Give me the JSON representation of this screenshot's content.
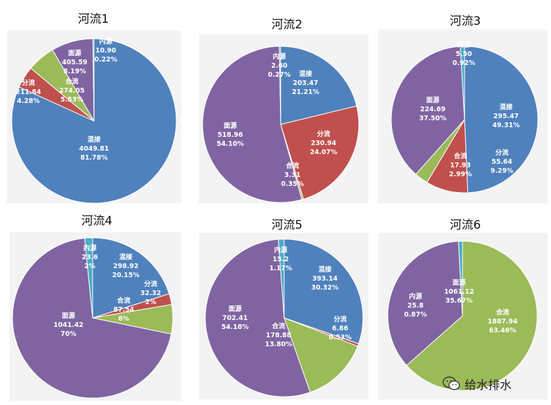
{
  "colors": {
    "混接": "#4f81bd",
    "分流": "#c0504d",
    "合流": "#9bbb59",
    "面源": "#8064a2",
    "内源": "#4bacc6"
  },
  "watermark": {
    "text": "给水排水",
    "icon": "wechat-icon"
  },
  "chart_data": [
    {
      "type": "pie",
      "title": "河流1",
      "slices": [
        {
          "name": "混接",
          "value": 4049.81,
          "percent": "81.78%"
        },
        {
          "name": "分流",
          "value": 211.84,
          "percent": "4.28%"
        },
        {
          "name": "合流",
          "value": 274.05,
          "percent": "5.53%"
        },
        {
          "name": "面源",
          "value": 405.59,
          "percent": "8.19%"
        },
        {
          "name": "内源",
          "value": 10.9,
          "percent": "0.22%"
        }
      ],
      "labels": [
        {
          "name": "混接",
          "value": "4049.81",
          "percent": "81.78%"
        },
        {
          "name": "分流",
          "value": "211.84",
          "percent": "4.28%"
        },
        {
          "name": "合流",
          "value": "274.05",
          "percent": "5.53%"
        },
        {
          "name": "面源",
          "value": "405.59",
          "percent": "8.19%"
        },
        {
          "name": "内源",
          "value": "10.90",
          "percent": "0.22%"
        }
      ]
    },
    {
      "type": "pie",
      "title": "河流2",
      "slices": [
        {
          "name": "混接",
          "value": 203.47,
          "percent": "21.21%"
        },
        {
          "name": "分流",
          "value": 230.94,
          "percent": "24.07%"
        },
        {
          "name": "合流",
          "value": 3.31,
          "percent": "0.35%"
        },
        {
          "name": "面源",
          "value": 518.96,
          "percent": "54.10%"
        },
        {
          "name": "内源",
          "value": 2.6,
          "percent": "0.27%"
        }
      ],
      "labels": [
        {
          "name": "混接",
          "value": "203.47",
          "percent": "21.21%"
        },
        {
          "name": "分流",
          "value": "230.94",
          "percent": "24.07%"
        },
        {
          "name": "合流",
          "value": "3.31",
          "percent": "0.35%"
        },
        {
          "name": "面源",
          "value": "518.96",
          "percent": "54.10%"
        },
        {
          "name": "内源",
          "value": "2.60",
          "percent": "0.27%"
        }
      ]
    },
    {
      "type": "pie",
      "title": "河流3",
      "slices": [
        {
          "name": "混接",
          "value": 295.47,
          "percent": "49.31%"
        },
        {
          "name": "分流",
          "value": 55.64,
          "percent": "9.29%"
        },
        {
          "name": "合流",
          "value": 17.93,
          "percent": "2.99%"
        },
        {
          "name": "面源",
          "value": 224.69,
          "percent": "37.50%"
        },
        {
          "name": "内源",
          "value": 5.5,
          "percent": "0.92%"
        }
      ],
      "labels": [
        {
          "name": "混接",
          "value": "295.47",
          "percent": "49.31%"
        },
        {
          "name": "分流",
          "value": "55.64",
          "percent": "9.29%"
        },
        {
          "name": "合流",
          "value": "17.93",
          "percent": "2.99%"
        },
        {
          "name": "面源",
          "value": "224.69",
          "percent": "37.50%"
        },
        {
          "name": "内源",
          "value": "5.50",
          "percent": "0.92%"
        }
      ]
    },
    {
      "type": "pie",
      "title": "河流4",
      "slices": [
        {
          "name": "混接",
          "value": 298.92,
          "percent": "20.15%"
        },
        {
          "name": "分流",
          "value": 32.32,
          "percent": "2%"
        },
        {
          "name": "合流",
          "value": 87.54,
          "percent": "6%"
        },
        {
          "name": "面源",
          "value": 1041.42,
          "percent": "70%"
        },
        {
          "name": "内源",
          "value": 23.6,
          "percent": "2%"
        }
      ],
      "labels": [
        {
          "name": "混接",
          "value": "298.92",
          "percent": "20.15%"
        },
        {
          "name": "分流",
          "value": "32.32",
          "percent": "2%"
        },
        {
          "name": "合流",
          "value": "87.54",
          "percent": "6%"
        },
        {
          "name": "面源",
          "value": "1041.42",
          "percent": "70%"
        },
        {
          "name": "内源",
          "value": "23.6",
          "percent": "2%"
        }
      ]
    },
    {
      "type": "pie",
      "title": "河流5",
      "slices": [
        {
          "name": "混接",
          "value": 393.14,
          "percent": "30.32%"
        },
        {
          "name": "分流",
          "value": 6.86,
          "percent": "0.53%"
        },
        {
          "name": "合流",
          "value": 178.88,
          "percent": "13.80%"
        },
        {
          "name": "面源",
          "value": 702.41,
          "percent": "54.18%"
        },
        {
          "name": "内源",
          "value": 15.2,
          "percent": "1.17%"
        }
      ],
      "labels": [
        {
          "name": "混接",
          "value": "393.14",
          "percent": "30.32%"
        },
        {
          "name": "分流",
          "value": "6.86",
          "percent": "0.53%"
        },
        {
          "name": "合流",
          "value": "178.88",
          "percent": "13.80%"
        },
        {
          "name": "面源",
          "value": "702.41",
          "percent": "54.18%"
        },
        {
          "name": "内源",
          "value": "15.2",
          "percent": "1.17%"
        }
      ]
    },
    {
      "type": "pie",
      "title": "河流6",
      "slices": [
        {
          "name": "合流",
          "value": 1887.94,
          "percent": "63.46%"
        },
        {
          "name": "面源",
          "value": 1061.12,
          "percent": "35.67%"
        },
        {
          "name": "内源",
          "value": 25.8,
          "percent": "0.87%"
        }
      ],
      "labels": [
        {
          "name": "合流",
          "value": "1887.94",
          "percent": "63.46%"
        },
        {
          "name": "面源",
          "value": "1061.12",
          "percent": "35.67%"
        },
        {
          "name": "内源",
          "value": "25.8",
          "percent": "0.87%"
        }
      ]
    }
  ]
}
